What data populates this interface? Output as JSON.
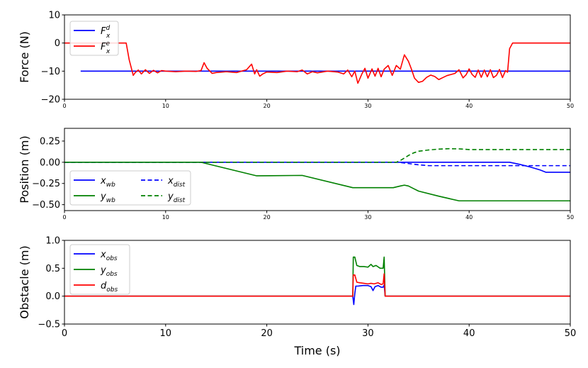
{
  "figure": {
    "xlabel": "Time (s)"
  },
  "chart_data": [
    {
      "type": "line",
      "title": "",
      "ylabel": "Force (N)",
      "xlim": [
        0,
        50
      ],
      "ylim": [
        -20,
        10
      ],
      "xticks": [
        0,
        10,
        20,
        30,
        40,
        50
      ],
      "yticks": [
        10,
        0,
        -10,
        -20
      ],
      "xtick_labels": [
        "0",
        "10",
        "20",
        "30",
        "40",
        "50"
      ],
      "ytick_labels": [
        "10",
        "0",
        "−10",
        "−20"
      ],
      "legend": "top-left",
      "series": [
        {
          "name": "F_x^d",
          "label_base": "F",
          "label_sub": "x",
          "label_sup": "d",
          "color": "#0000ff",
          "style": "solid",
          "x": [
            1.6,
            50
          ],
          "y": [
            -10,
            -10
          ]
        },
        {
          "name": "F_x^e",
          "label_base": "F",
          "label_sub": "x",
          "label_sup": "e",
          "color": "#ff0000",
          "style": "solid",
          "x": [
            0,
            6.1,
            6.4,
            6.8,
            7.0,
            7.3,
            7.6,
            8.0,
            8.4,
            8.8,
            9.2,
            9.6,
            10.0,
            11.0,
            12.0,
            13.0,
            13.5,
            13.8,
            14.1,
            14.6,
            15.0,
            16.0,
            17.0,
            18.0,
            18.5,
            18.8,
            19.0,
            19.3,
            19.6,
            20.0,
            21.0,
            22.0,
            23.0,
            23.5,
            24.0,
            24.5,
            25.0,
            26.0,
            27.0,
            27.6,
            28.0,
            28.4,
            28.7,
            29.0,
            29.4,
            29.7,
            30.0,
            30.4,
            30.7,
            31.0,
            31.3,
            31.6,
            32.0,
            32.4,
            32.8,
            33.2,
            33.6,
            34.0,
            34.3,
            34.6,
            35.0,
            35.4,
            35.8,
            36.2,
            36.6,
            37.0,
            37.4,
            37.8,
            38.2,
            38.6,
            39.0,
            39.4,
            39.7,
            40.0,
            40.3,
            40.6,
            40.9,
            41.2,
            41.5,
            41.8,
            42.1,
            42.4,
            42.7,
            43.0,
            43.3,
            43.6,
            43.8,
            44.0,
            44.3,
            50
          ],
          "y": [
            0,
            0,
            -6,
            -11.5,
            -10.5,
            -9.6,
            -11,
            -9.5,
            -10.8,
            -9.7,
            -10.6,
            -9.8,
            -10,
            -10.2,
            -10,
            -10.1,
            -9.8,
            -7,
            -9,
            -10.8,
            -10.5,
            -10.2,
            -10.5,
            -9.5,
            -7.5,
            -11,
            -9.5,
            -11.8,
            -11,
            -10.3,
            -10.5,
            -10,
            -10.2,
            -9.6,
            -11,
            -10.2,
            -10.6,
            -10,
            -10.3,
            -11,
            -9.6,
            -12,
            -10,
            -14.3,
            -11,
            -9,
            -12.5,
            -9.2,
            -11.8,
            -9,
            -12,
            -9.3,
            -8,
            -11.5,
            -8,
            -9.3,
            -4.2,
            -6.5,
            -9.3,
            -12.5,
            -14,
            -13.6,
            -12.2,
            -11.4,
            -11.9,
            -13,
            -12.3,
            -11.6,
            -11.2,
            -10.8,
            -9.5,
            -12.4,
            -11.3,
            -9.2,
            -11.2,
            -12.2,
            -9.6,
            -12.2,
            -9.6,
            -12,
            -9.5,
            -12.3,
            -11.5,
            -9.4,
            -12.3,
            -9.8,
            -10.4,
            -2,
            0,
            0
          ]
        }
      ]
    },
    {
      "type": "line",
      "title": "",
      "ylabel": "Position (m)",
      "xlim": [
        0,
        50
      ],
      "ylim": [
        -0.57,
        0.4
      ],
      "xticks": [
        0,
        10,
        20,
        30,
        40,
        50
      ],
      "yticks": [
        0.25,
        0.0,
        -0.25,
        -0.5
      ],
      "xtick_labels": [
        "0",
        "10",
        "20",
        "30",
        "40",
        "50"
      ],
      "ytick_labels": [
        "0.25",
        "0.00",
        "−0.25",
        "−0.50"
      ],
      "legend": "bottom-left",
      "series": [
        {
          "name": "x_wb",
          "label_base": "x",
          "label_sub": "wb",
          "label_sup": "",
          "color": "#0000ff",
          "style": "solid",
          "x": [
            0,
            44,
            45,
            46,
            47,
            47.6,
            50
          ],
          "y": [
            0,
            0,
            -0.025,
            -0.055,
            -0.09,
            -0.118,
            -0.118
          ]
        },
        {
          "name": "y_wb",
          "label_base": "y",
          "label_sub": "wb",
          "label_sup": "",
          "color": "#008000",
          "style": "solid",
          "x": [
            0,
            13.5,
            19,
            23.5,
            28.5,
            32.5,
            33.2,
            33.6,
            34,
            34.5,
            35,
            37,
            39,
            50
          ],
          "y": [
            0,
            0,
            -0.16,
            -0.155,
            -0.3,
            -0.3,
            -0.28,
            -0.27,
            -0.28,
            -0.31,
            -0.34,
            -0.4,
            -0.455,
            -0.455
          ]
        },
        {
          "name": "x_dist",
          "label_base": "x",
          "label_sub": "dist",
          "label_sup": "",
          "color": "#0000ff",
          "style": "dashed",
          "x": [
            0,
            33,
            34,
            35,
            36,
            50
          ],
          "y": [
            0,
            0,
            -0.015,
            -0.03,
            -0.04,
            -0.04
          ]
        },
        {
          "name": "y_dist",
          "label_base": "y",
          "label_sub": "dist",
          "label_sup": "",
          "color": "#008000",
          "style": "dashed",
          "x": [
            0,
            32.8,
            33.2,
            33.6,
            34,
            34.5,
            35,
            36,
            37,
            38,
            39,
            40,
            50
          ],
          "y": [
            0,
            0,
            0.02,
            0.05,
            0.08,
            0.11,
            0.13,
            0.145,
            0.155,
            0.16,
            0.158,
            0.15,
            0.15
          ]
        }
      ]
    },
    {
      "type": "line",
      "title": "",
      "ylabel": "Obstacle (m)",
      "xlim": [
        0,
        50
      ],
      "ylim": [
        -0.5,
        1.0
      ],
      "xticks": [
        0,
        10,
        20,
        30,
        40,
        50
      ],
      "yticks": [
        1.0,
        0.5,
        0.0,
        -0.5
      ],
      "xtick_labels": [
        "0",
        "10",
        "20",
        "30",
        "40",
        "50"
      ],
      "ytick_labels": [
        "1.0",
        "0.5",
        "0.0",
        "−0.5"
      ],
      "legend": "top-left",
      "series": [
        {
          "name": "x_obs",
          "label_base": "x",
          "label_sub": "obs",
          "label_sup": "",
          "color": "#0000ff",
          "style": "solid",
          "x": [
            0,
            28.5,
            28.6,
            28.7,
            28.8,
            29.0,
            29.5,
            30.0,
            30.3,
            30.5,
            30.7,
            31.0,
            31.3,
            31.5,
            31.6,
            31.7,
            50
          ],
          "y": [
            0,
            0,
            -0.15,
            0.05,
            0.18,
            0.18,
            0.19,
            0.19,
            0.17,
            0.1,
            0.17,
            0.19,
            0.16,
            0.16,
            0.2,
            0,
            0
          ]
        },
        {
          "name": "y_obs",
          "label_base": "y",
          "label_sub": "obs",
          "label_sup": "",
          "color": "#008000",
          "style": "solid",
          "x": [
            0,
            28.5,
            28.55,
            28.7,
            28.9,
            29.2,
            29.6,
            30.0,
            30.3,
            30.5,
            30.8,
            31.2,
            31.5,
            31.6,
            31.7,
            50
          ],
          "y": [
            0,
            0,
            0.7,
            0.7,
            0.55,
            0.53,
            0.53,
            0.52,
            0.57,
            0.53,
            0.55,
            0.5,
            0.5,
            0.7,
            0,
            0
          ]
        },
        {
          "name": "d_obs",
          "label_base": "d",
          "label_sub": "obs",
          "label_sup": "",
          "color": "#ff0000",
          "style": "solid",
          "x": [
            0,
            28.5,
            28.55,
            28.7,
            28.9,
            29.2,
            29.6,
            30.0,
            30.3,
            30.6,
            31.0,
            31.3,
            31.5,
            31.6,
            31.7,
            50
          ],
          "y": [
            0,
            0,
            0.38,
            0.38,
            0.25,
            0.24,
            0.23,
            0.22,
            0.23,
            0.22,
            0.24,
            0.21,
            0.22,
            0.4,
            0,
            0
          ]
        }
      ]
    }
  ]
}
